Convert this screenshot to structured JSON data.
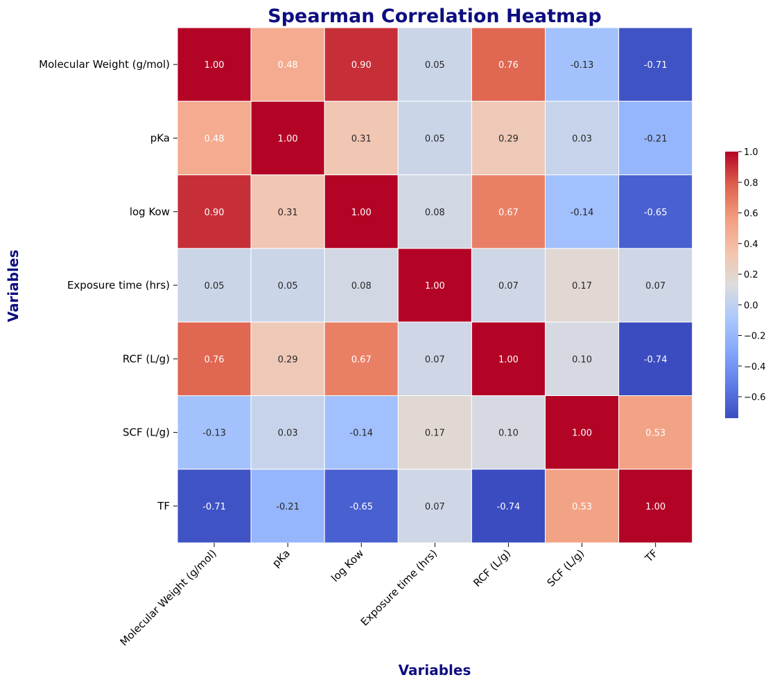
{
  "chart_data": {
    "type": "heatmap",
    "title": "Spearman Correlation Heatmap",
    "xlabel": "Variables",
    "ylabel": "Variables",
    "x_categories": [
      "Molecular Weight (g/mol)",
      "pKa",
      "log Kow",
      "Exposure time  (hrs)",
      "RCF (L/g)",
      "SCF (L/g)",
      "TF"
    ],
    "y_categories": [
      "Molecular Weight (g/mol)",
      "pKa",
      "log Kow",
      " Exposure time  (hrs)",
      "RCF (L/g)",
      "SCF (L/g)   ",
      "TF"
    ],
    "values": [
      [
        1.0,
        0.48,
        0.9,
        0.05,
        0.76,
        -0.13,
        -0.71
      ],
      [
        0.48,
        1.0,
        0.31,
        0.05,
        0.29,
        0.03,
        -0.21
      ],
      [
        0.9,
        0.31,
        1.0,
        0.08,
        0.67,
        -0.14,
        -0.65
      ],
      [
        0.05,
        0.05,
        0.08,
        1.0,
        0.07,
        0.17,
        0.07
      ],
      [
        0.76,
        0.29,
        0.67,
        0.07,
        1.0,
        0.1,
        -0.74
      ],
      [
        -0.13,
        0.03,
        -0.14,
        0.17,
        0.1,
        1.0,
        0.53
      ],
      [
        -0.71,
        -0.21,
        -0.65,
        0.07,
        -0.74,
        0.53,
        1.0
      ]
    ],
    "annotation_format": "0.00",
    "colormap": "coolwarm",
    "color_range": [
      -0.74,
      1.0
    ],
    "colorbar_ticks": [
      "1.0",
      "0.8",
      "0.6",
      "0.4",
      "0.2",
      "0.0",
      "−0.2",
      "−0.4",
      "−0.6"
    ],
    "colorbar_tick_values": [
      1.0,
      0.8,
      0.6,
      0.4,
      0.2,
      0.0,
      -0.2,
      -0.4,
      -0.6
    ],
    "legend_placement": "right",
    "grid": false,
    "colors": {
      "title": "#0d0d80",
      "cell_border": "#ffffff",
      "text_dark": "#262626",
      "text_light": "#ffffff"
    }
  }
}
